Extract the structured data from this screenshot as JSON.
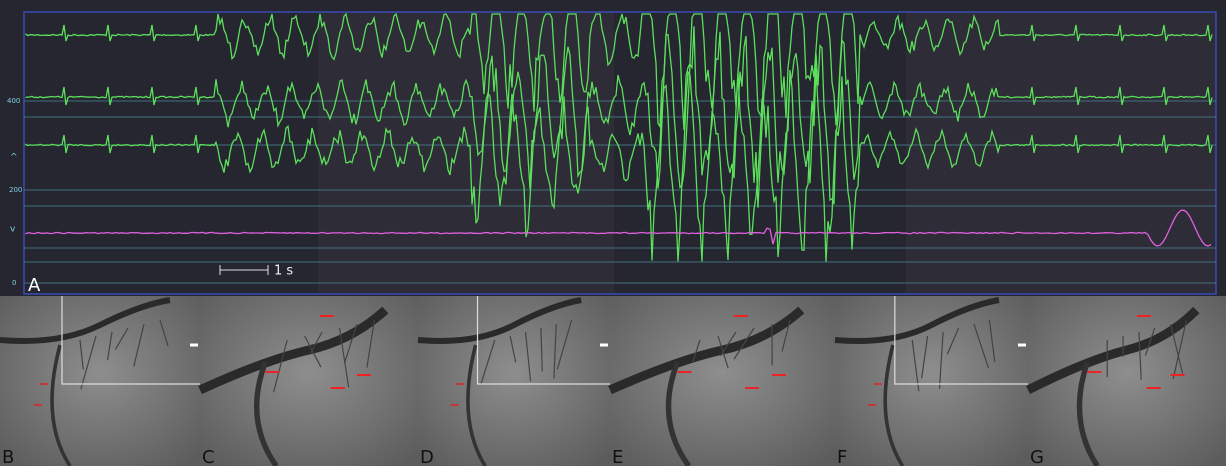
{
  "monitor": {
    "axis_labels": [
      "400",
      "200",
      "0"
    ],
    "markers": [
      "^",
      "v"
    ],
    "scale_bar": "1 s",
    "panel": "A"
  },
  "angiograms": {
    "panels": [
      "B",
      "C",
      "D",
      "E",
      "F",
      "G"
    ]
  }
}
